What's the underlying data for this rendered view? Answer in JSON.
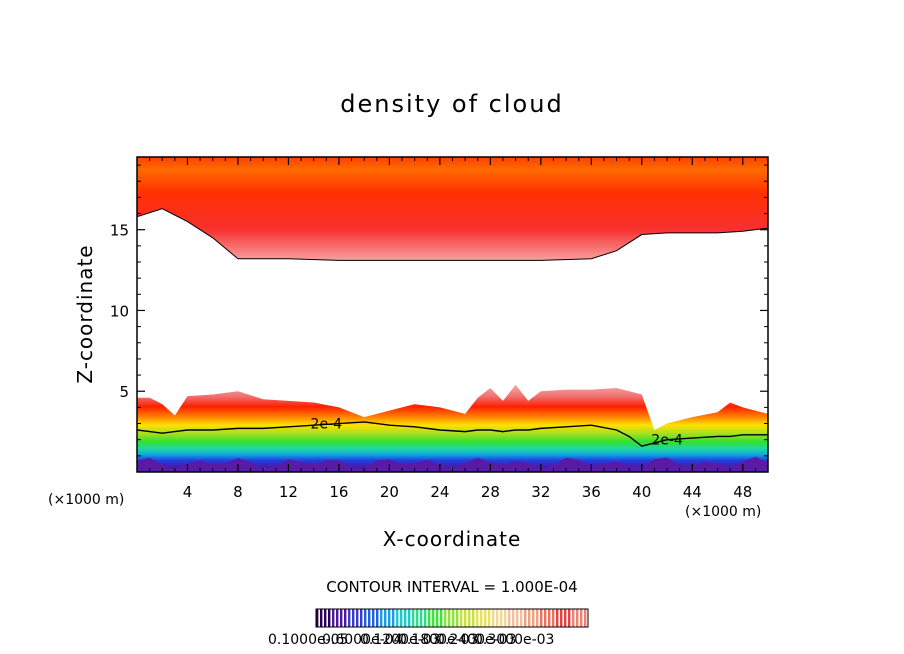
{
  "chart_data": {
    "type": "heatmap",
    "title": "density of cloud",
    "xlabel": "X-coordinate",
    "ylabel": "Z-coordinate",
    "x_unit": "(×1000 m)",
    "y_unit": "(×1000 m)",
    "xlim": [
      0,
      50
    ],
    "ylim": [
      0,
      19.5
    ],
    "x_ticks": [
      "4",
      "8",
      "12",
      "16",
      "20",
      "24",
      "28",
      "32",
      "36",
      "40",
      "44",
      "48"
    ],
    "x_tick_values": [
      4,
      8,
      12,
      16,
      20,
      24,
      28,
      32,
      36,
      40,
      44,
      48
    ],
    "y_ticks": [
      "5",
      "10",
      "15"
    ],
    "y_tick_values": [
      5,
      10,
      15
    ],
    "contour_interval_text": "CONTOUR INTERVAL = 1.000E-04",
    "contour_labels": [
      "2e-4",
      "2e-4"
    ],
    "contour_label_x": [
      15,
      42
    ],
    "colorbar_label": "0.1000e-05",
    "colorbar_overlap_labels": [
      "0.6000e-04",
      "0.1200e-03",
      "0.1800e-03",
      "0.2400e-03",
      "0.3000e-03"
    ],
    "colorbar_colors": [
      "#2a0055",
      "#4a1a9a",
      "#3a3ad0",
      "#2060e8",
      "#1a9ae8",
      "#20c8c8",
      "#30d890",
      "#40e040",
      "#90e040",
      "#c8e040",
      "#e8e060",
      "#f0d898",
      "#f0c0a0",
      "#f0a080",
      "#f07060",
      "#e84040",
      "#f08070"
    ],
    "regions": {
      "upper_anvil": {
        "top_z": 19.5,
        "bottom_x": [
          0,
          2,
          4,
          6,
          8,
          12,
          16,
          20,
          24,
          28,
          32,
          36,
          38,
          40,
          42,
          44,
          46,
          48,
          50
        ],
        "bottom_z": [
          15.8,
          16.3,
          15.5,
          14.5,
          13.2,
          13.2,
          13.1,
          13.1,
          13.1,
          13.1,
          13.1,
          13.2,
          13.7,
          14.7,
          14.8,
          14.8,
          14.8,
          14.9,
          15.1
        ]
      },
      "lower_cloud": {
        "bottom_z": 0.2,
        "top_x": [
          0,
          1,
          2,
          3,
          4,
          6,
          8,
          10,
          12,
          14,
          16,
          18,
          20,
          22,
          24,
          26,
          27,
          28,
          29,
          30,
          31,
          32,
          34,
          36,
          38,
          39,
          40,
          41,
          42,
          44,
          46,
          47,
          48,
          50
        ],
        "top_z": [
          4.6,
          4.6,
          4.2,
          3.5,
          4.7,
          4.8,
          5.0,
          4.5,
          4.4,
          4.3,
          4.0,
          3.4,
          3.8,
          4.2,
          4.0,
          3.6,
          4.6,
          5.2,
          4.4,
          5.4,
          4.4,
          5.0,
          5.1,
          5.1,
          5.2,
          5.0,
          4.8,
          2.6,
          3.0,
          3.4,
          3.7,
          4.3,
          4.0,
          3.6
        ],
        "contour_2e4_z": [
          2.6,
          2.5,
          2.4,
          2.5,
          2.6,
          2.6,
          2.7,
          2.7,
          2.8,
          2.9,
          3.0,
          3.1,
          2.9,
          2.8,
          2.6,
          2.5,
          2.6,
          2.6,
          2.5,
          2.6,
          2.6,
          2.7,
          2.8,
          2.9,
          2.6,
          2.2,
          1.6,
          1.8,
          2.0,
          2.1,
          2.2,
          2.2,
          2.3,
          2.3
        ]
      }
    }
  }
}
